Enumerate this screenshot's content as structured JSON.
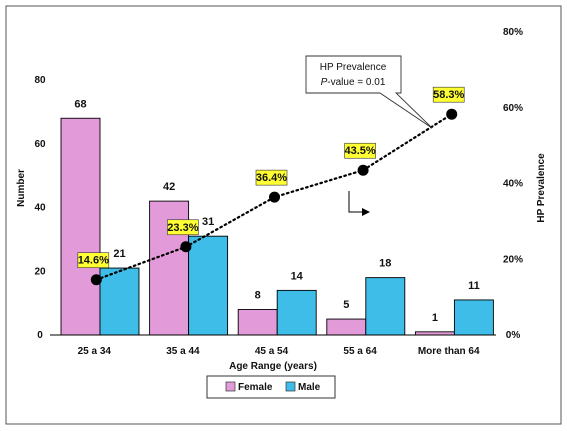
{
  "chart_data": {
    "type": "bar",
    "categories": [
      "25 a 34",
      "35 a 44",
      "45 a 54",
      "55 a 64",
      "More than 64"
    ],
    "series": [
      {
        "name": "Female",
        "values": [
          68,
          42,
          8,
          5,
          1
        ],
        "color": "#e39ad9"
      },
      {
        "name": "Male",
        "values": [
          21,
          31,
          14,
          18,
          11
        ],
        "color": "#3dbde8"
      }
    ],
    "line_series": {
      "values": [
        14.6,
        23.3,
        36.4,
        43.5,
        58.3
      ],
      "labels": [
        "14.6%",
        "23.3%",
        "36.4%",
        "43.5%",
        "58.3%"
      ],
      "axis": "right",
      "style": "dotted",
      "marker_color": "#000000",
      "label_bg": "#ffff33"
    },
    "xlabel": "Age Range (years)",
    "ylabel": "Number",
    "y2label": "HP Prevalence",
    "ylim": [
      0,
      80
    ],
    "yticks": [
      "0",
      "20",
      "40",
      "60",
      "80"
    ],
    "y2lim": [
      0,
      80
    ],
    "y2ticks": [
      "0%",
      "20%",
      "40%",
      "60%",
      "80%"
    ],
    "annotation": {
      "line1": "HP Prevalence",
      "line2_italic": "P",
      "line2_rest": "-value = 0.01"
    },
    "legend_position": "bottom",
    "grid": false
  }
}
